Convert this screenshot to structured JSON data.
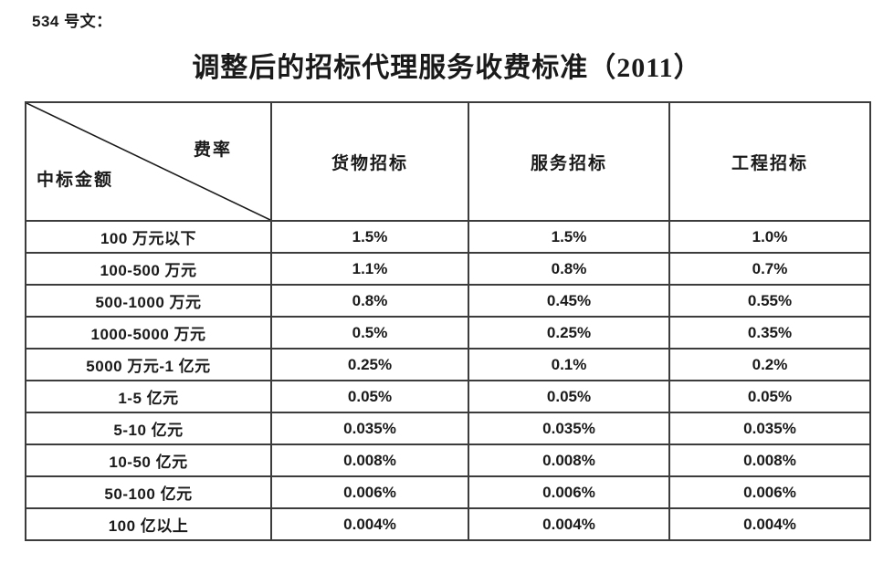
{
  "page": {
    "doc_label": "534 号文：",
    "title": "调整后的招标代理服务收费标准（2011）"
  },
  "table": {
    "corner": {
      "top_right": "费率",
      "bottom_left": "中标金额"
    },
    "columns": [
      "货物招标",
      "服务招标",
      "工程招标"
    ],
    "rows": [
      {
        "label": "100 万元以下",
        "values": [
          "1.5%",
          "1.5%",
          "1.0%"
        ]
      },
      {
        "label": "100-500 万元",
        "values": [
          "1.1%",
          "0.8%",
          "0.7%"
        ]
      },
      {
        "label": "500-1000 万元",
        "values": [
          "0.8%",
          "0.45%",
          "0.55%"
        ]
      },
      {
        "label": "1000-5000 万元",
        "values": [
          "0.5%",
          "0.25%",
          "0.35%"
        ]
      },
      {
        "label": "5000 万元-1 亿元",
        "values": [
          "0.25%",
          "0.1%",
          "0.2%"
        ]
      },
      {
        "label": "1-5 亿元",
        "values": [
          "0.05%",
          "0.05%",
          "0.05%"
        ]
      },
      {
        "label": "5-10 亿元",
        "values": [
          "0.035%",
          "0.035%",
          "0.035%"
        ]
      },
      {
        "label": "10-50 亿元",
        "values": [
          "0.008%",
          "0.008%",
          "0.008%"
        ]
      },
      {
        "label": "50-100 亿元",
        "values": [
          "0.006%",
          "0.006%",
          "0.006%"
        ]
      },
      {
        "label": "100 亿以上",
        "values": [
          "0.004%",
          "0.004%",
          "0.004%"
        ]
      }
    ]
  },
  "colors": {
    "text": "#1a1a1a",
    "border": "#3c3c3c",
    "background": "#ffffff"
  }
}
